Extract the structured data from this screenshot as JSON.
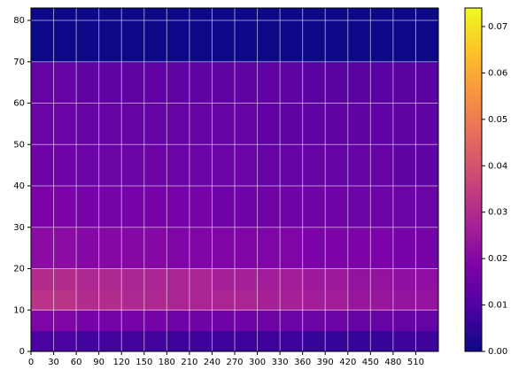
{
  "chart_data": {
    "type": "heatmap",
    "x": [
      0,
      60,
      120,
      180,
      240,
      300,
      360,
      420,
      480,
      540
    ],
    "y": [
      0,
      5,
      10,
      15,
      20,
      30,
      40,
      50,
      60,
      70,
      83
    ],
    "z": [
      [
        0.009,
        0.008,
        0.008,
        0.007,
        0.007,
        0.007,
        0.006,
        0.006,
        0.007
      ],
      [
        0.019,
        0.017,
        0.017,
        0.016,
        0.016,
        0.015,
        0.015,
        0.014,
        0.014
      ],
      [
        0.032,
        0.03,
        0.029,
        0.028,
        0.028,
        0.027,
        0.026,
        0.024,
        0.023
      ],
      [
        0.03,
        0.029,
        0.028,
        0.028,
        0.027,
        0.026,
        0.025,
        0.023,
        0.022
      ],
      [
        0.021,
        0.02,
        0.02,
        0.019,
        0.019,
        0.019,
        0.018,
        0.018,
        0.017
      ],
      [
        0.018,
        0.017,
        0.017,
        0.017,
        0.016,
        0.016,
        0.016,
        0.015,
        0.015
      ],
      [
        0.016,
        0.015,
        0.015,
        0.015,
        0.015,
        0.014,
        0.014,
        0.014,
        0.013
      ],
      [
        0.015,
        0.014,
        0.014,
        0.014,
        0.014,
        0.013,
        0.013,
        0.013,
        0.013
      ],
      [
        0.014,
        0.013,
        0.013,
        0.013,
        0.013,
        0.013,
        0.012,
        0.012,
        0.012
      ],
      [
        0,
        0,
        0,
        0,
        0,
        0,
        0,
        0,
        0
      ]
    ],
    "xlim": [
      0,
      540
    ],
    "ylim": [
      0,
      83
    ],
    "xticks": [
      0,
      30,
      60,
      90,
      120,
      150,
      180,
      210,
      240,
      270,
      300,
      330,
      360,
      390,
      420,
      450,
      480,
      510
    ],
    "yticks": [
      0,
      10,
      20,
      30,
      40,
      50,
      60,
      70,
      80
    ],
    "grid": true,
    "colormap": [
      "#0d0887",
      "#4c02a1",
      "#7e03a8",
      "#a92395",
      "#cc4778",
      "#e56b5d",
      "#f89441",
      "#fdc328",
      "#f0f921"
    ],
    "clim": [
      0,
      0.074
    ],
    "cticks": [
      {
        "value": 0,
        "label": "0.00"
      },
      {
        "value": 0.01,
        "label": "0.01"
      },
      {
        "value": 0.02,
        "label": "0.02"
      },
      {
        "value": 0.03,
        "label": "0.03"
      },
      {
        "value": 0.04,
        "label": "0.04"
      },
      {
        "value": 0.05,
        "label": "0.05"
      },
      {
        "value": 0.06,
        "label": "0.06"
      },
      {
        "value": 0.07,
        "label": "0.07"
      }
    ]
  }
}
